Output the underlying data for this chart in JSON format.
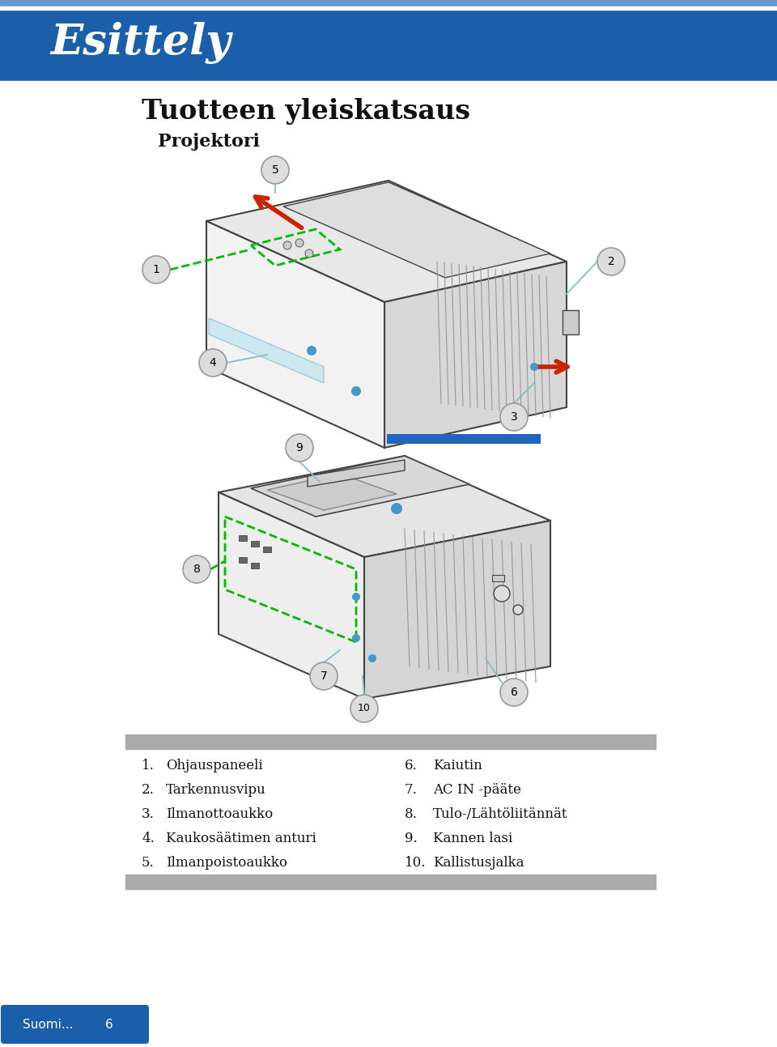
{
  "header_bg_color": "#1b5faa",
  "header_title": "Esittely",
  "header_title_color": "#ffffff",
  "page_bg_color": "#ffffff",
  "section_title": "Tuotteen yleiskatsaus",
  "section_subtitle": "Projektori",
  "title_color": "#111111",
  "subtitle_color": "#111111",
  "gray_bar_color": "#aaaaaa",
  "footer_bg_color": "#1b5faa",
  "footer_text": "Suomi...",
  "footer_page": "6",
  "footer_text_color": "#ffffff",
  "parts_list": [
    [
      "1.",
      "Ohjauspaneeli",
      "6.",
      "Kaiutin"
    ],
    [
      "2.",
      "Tarkennusvipu",
      "7.",
      "AC IN -pääte"
    ],
    [
      "3.",
      "Ilmanottoaukko",
      "8.",
      "Tulo-/Lähtöliitännät"
    ],
    [
      "4.",
      "Kaukosäätimen anturi",
      "9.",
      "Kannen lasi"
    ],
    [
      "5.",
      "Ilmanpoistoaukko",
      "10.",
      "Kallistusjalka"
    ]
  ],
  "parts_text_color": "#111111",
  "parts_fontsize": 12,
  "bubble_color": "#dddddd",
  "bubble_edge_color": "#999999",
  "line_color": "#88bbcc",
  "green_dash_color": "#00bb00",
  "projector_body_color": "#f0f0f0",
  "projector_edge_color": "#444444",
  "projector_dark_color": "#cccccc",
  "projector_grille_color": "#888888",
  "red_arrow_color": "#cc2200"
}
